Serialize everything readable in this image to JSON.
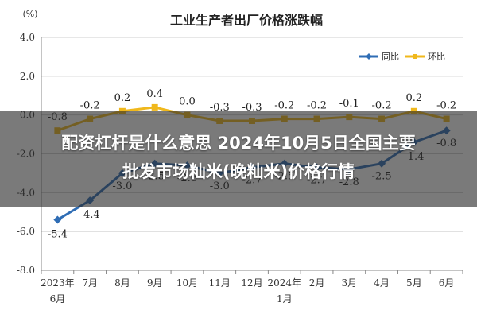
{
  "headline": {
    "line1": "配资杠杆是什么意思 2024年10月5日全国主要",
    "line2": "批发市场籼米(晚籼米)价格行情"
  },
  "chart_data": {
    "type": "line",
    "title": "工业生产者出厂价格涨跌幅",
    "unit": "(%)",
    "categories": [
      "2023年6月",
      "7月",
      "8月",
      "9月",
      "10月",
      "11月",
      "12月",
      "2024年1月",
      "2月",
      "3月",
      "4月",
      "5月",
      "6月"
    ],
    "category_lines": [
      [
        "2023年",
        "6月"
      ],
      [
        "7月"
      ],
      [
        "8月"
      ],
      [
        "9月"
      ],
      [
        "10月"
      ],
      [
        "11月"
      ],
      [
        "12月"
      ],
      [
        "2024年",
        "1月"
      ],
      [
        "2月"
      ],
      [
        "3月"
      ],
      [
        "4月"
      ],
      [
        "5月"
      ],
      [
        "6月"
      ]
    ],
    "ylim": [
      -8.0,
      4.0
    ],
    "yticks": [
      "4.0",
      "2.0",
      "0.0",
      "-2.0",
      "-4.0",
      "-6.0",
      "-8.0"
    ],
    "grid": true,
    "legend_position": "top-right",
    "series": [
      {
        "name": "同比",
        "color": "#2f6db5",
        "values": [
          -5.4,
          -4.4,
          -3.0,
          -2.5,
          -2.6,
          -3.0,
          -2.7,
          -2.5,
          -2.7,
          -2.8,
          -2.5,
          -1.4,
          -0.8
        ],
        "labels": [
          "-5.4",
          "-4.4",
          "-3.0",
          "-2.5",
          "-2.6",
          "-3.0",
          "-2.7",
          "-2.5",
          "-2.7",
          "-2.8",
          "-2.5",
          "-1.4",
          "-0.8"
        ]
      },
      {
        "name": "环比",
        "color": "#f0b81c",
        "values": [
          -0.8,
          -0.2,
          0.2,
          0.4,
          0.0,
          -0.3,
          -0.3,
          -0.2,
          -0.2,
          -0.1,
          -0.2,
          0.2,
          -0.2
        ],
        "labels": [
          "-0.8",
          "-0.2",
          "0.2",
          "0.4",
          "0.0",
          "-0.3",
          "-0.3",
          "-0.2",
          "-0.2",
          "-0.1",
          "-0.2",
          "0.2",
          "-0.2"
        ]
      }
    ]
  }
}
